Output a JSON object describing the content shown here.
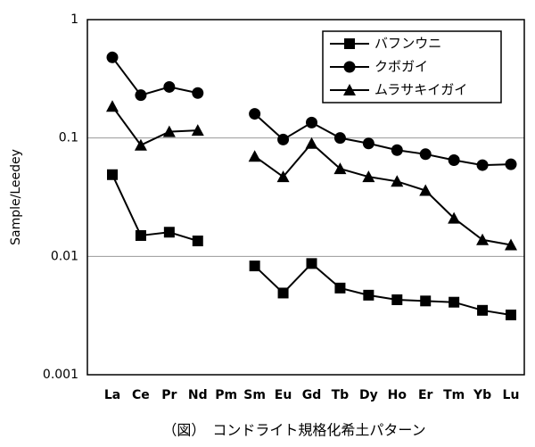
{
  "chart_data": {
    "type": "line",
    "log_y": true,
    "grid": true,
    "y_label": "Sample/Leedey",
    "caption": "（図）　コンドライト規格化希土パターン",
    "categories": [
      "La",
      "Ce",
      "Pr",
      "Nd",
      "Pm",
      "Sm",
      "Eu",
      "Gd",
      "Tb",
      "Dy",
      "Ho",
      "Er",
      "Tm",
      "Yb",
      "Lu"
    ],
    "ylim": [
      0.001,
      1
    ],
    "yticks": [
      0.001,
      0.01,
      0.1,
      1
    ],
    "legend": "top-right",
    "series": [
      {
        "name": "バフンウニ",
        "color": "#000000",
        "marker": "square",
        "values": [
          0.049,
          0.015,
          0.016,
          0.0135,
          null,
          0.0083,
          0.0049,
          0.0087,
          0.0054,
          0.0047,
          0.0043,
          0.0042,
          0.0041,
          0.0035,
          0.0032
        ]
      },
      {
        "name": "クボガイ",
        "color": "#000000",
        "marker": "circle",
        "values": [
          0.48,
          0.23,
          0.27,
          0.24,
          null,
          0.16,
          0.097,
          0.135,
          0.1,
          0.09,
          0.079,
          0.073,
          0.065,
          0.059,
          0.06
        ]
      },
      {
        "name": "ムラサキイガイ",
        "color": "#000000",
        "marker": "triangle",
        "values": [
          0.185,
          0.087,
          0.113,
          0.116,
          null,
          0.07,
          0.047,
          0.09,
          0.055,
          0.047,
          0.043,
          0.036,
          0.021,
          0.0138,
          0.0125
        ]
      }
    ]
  }
}
